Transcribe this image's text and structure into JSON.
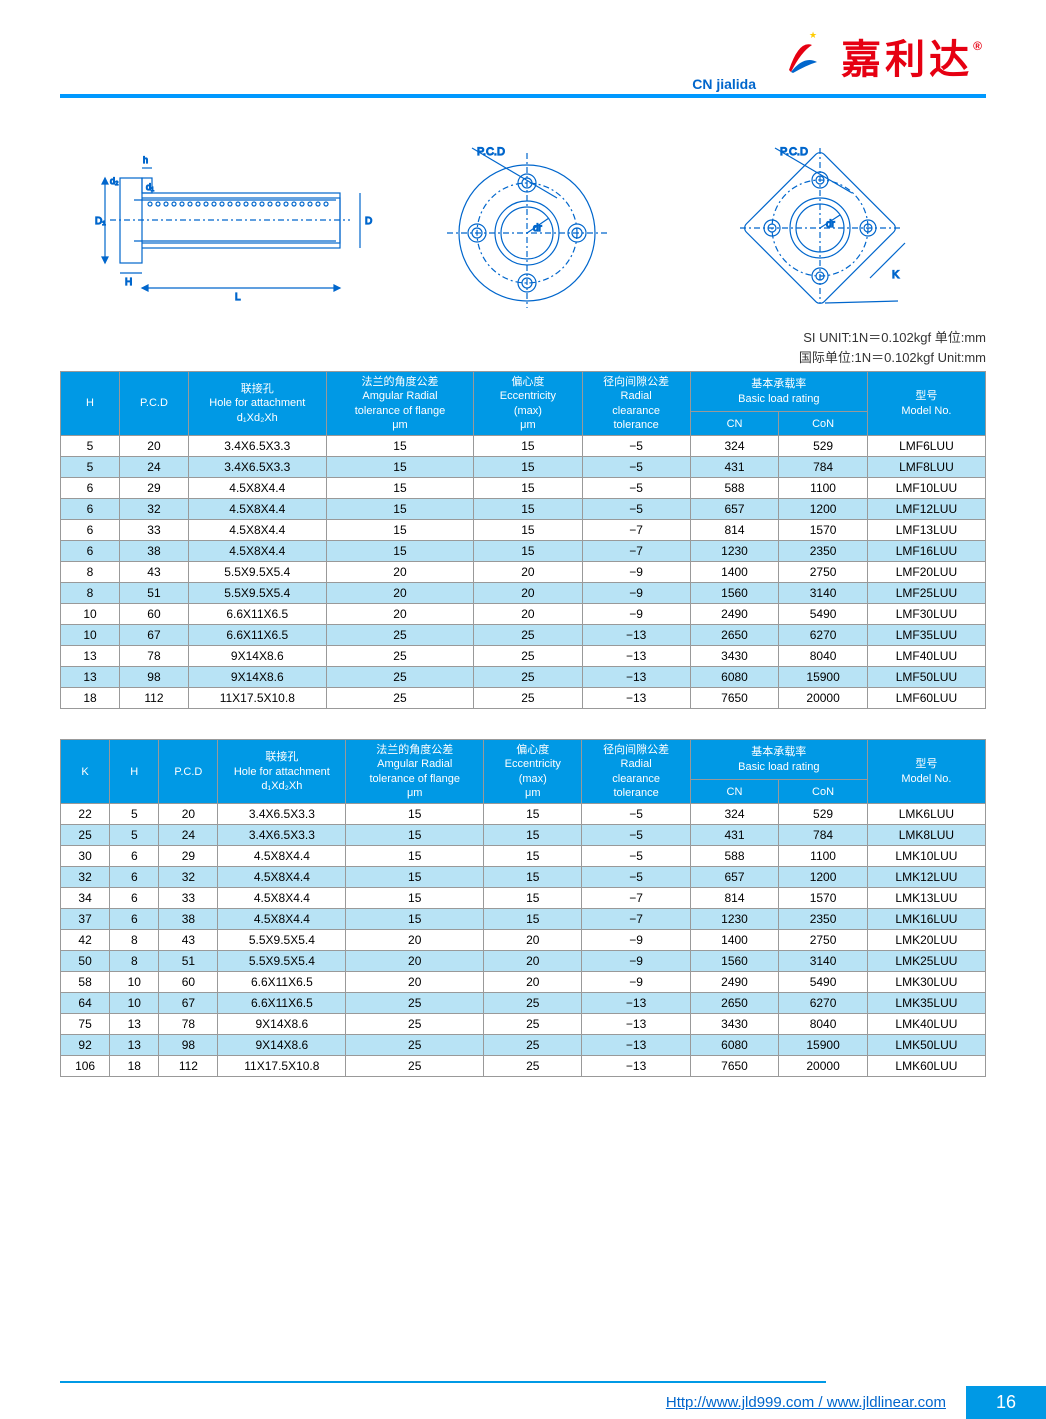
{
  "brand": {
    "sub": "CN jialida",
    "chars": "嘉利达",
    "reg": "®"
  },
  "unit": {
    "l1": "SI  UNIT:1N＝0.102kgf    单位:mm",
    "l2": "国际单位:1N＝0.102kgf    Unit:mm"
  },
  "t1": {
    "headers": {
      "h": "H",
      "pcd": "P.C.D",
      "hole_cn": "联接孔",
      "hole_en": "Hole for attachment",
      "hole_sub": "d₁Xd₂Xh",
      "ang_cn": "法兰的角度公差",
      "ang_en": "Amgular Radial",
      "ang_en2": "tolerance of flange",
      "ang_u": "μm",
      "ecc_cn": "偏心度",
      "ecc_en": "Eccentricity",
      "ecc_en2": "(max)",
      "ecc_u": "μm",
      "rad_cn": "径向间隙公差",
      "rad_en": "Radial",
      "rad_en2": "clearance",
      "rad_en3": "tolerance",
      "load_cn": "基本承载率",
      "load_en": "Basic load rating",
      "cn": "CN",
      "con": "CoN",
      "model_cn": "型号",
      "model_en": "Model No."
    },
    "rows": [
      [
        "5",
        "20",
        "3.4X6.5X3.3",
        "15",
        "15",
        "−5",
        "324",
        "529",
        "LMF6LUU"
      ],
      [
        "5",
        "24",
        "3.4X6.5X3.3",
        "15",
        "15",
        "−5",
        "431",
        "784",
        "LMF8LUU"
      ],
      [
        "6",
        "29",
        "4.5X8X4.4",
        "15",
        "15",
        "−5",
        "588",
        "1100",
        "LMF10LUU"
      ],
      [
        "6",
        "32",
        "4.5X8X4.4",
        "15",
        "15",
        "−5",
        "657",
        "1200",
        "LMF12LUU"
      ],
      [
        "6",
        "33",
        "4.5X8X4.4",
        "15",
        "15",
        "−7",
        "814",
        "1570",
        "LMF13LUU"
      ],
      [
        "6",
        "38",
        "4.5X8X4.4",
        "15",
        "15",
        "−7",
        "1230",
        "2350",
        "LMF16LUU"
      ],
      [
        "8",
        "43",
        "5.5X9.5X5.4",
        "20",
        "20",
        "−9",
        "1400",
        "2750",
        "LMF20LUU"
      ],
      [
        "8",
        "51",
        "5.5X9.5X5.4",
        "20",
        "20",
        "−9",
        "1560",
        "3140",
        "LMF25LUU"
      ],
      [
        "10",
        "60",
        "6.6X11X6.5",
        "20",
        "20",
        "−9",
        "2490",
        "5490",
        "LMF30LUU"
      ],
      [
        "10",
        "67",
        "6.6X11X6.5",
        "25",
        "25",
        "−13",
        "2650",
        "6270",
        "LMF35LUU"
      ],
      [
        "13",
        "78",
        "9X14X8.6",
        "25",
        "25",
        "−13",
        "3430",
        "8040",
        "LMF40LUU"
      ],
      [
        "13",
        "98",
        "9X14X8.6",
        "25",
        "25",
        "−13",
        "6080",
        "15900",
        "LMF50LUU"
      ],
      [
        "18",
        "112",
        "11X17.5X10.8",
        "25",
        "25",
        "−13",
        "7650",
        "20000",
        "LMF60LUU"
      ]
    ]
  },
  "t2": {
    "headers": {
      "k": "K"
    },
    "rows": [
      [
        "22",
        "5",
        "20",
        "3.4X6.5X3.3",
        "15",
        "15",
        "−5",
        "324",
        "529",
        "LMK6LUU"
      ],
      [
        "25",
        "5",
        "24",
        "3.4X6.5X3.3",
        "15",
        "15",
        "−5",
        "431",
        "784",
        "LMK8LUU"
      ],
      [
        "30",
        "6",
        "29",
        "4.5X8X4.4",
        "15",
        "15",
        "−5",
        "588",
        "1100",
        "LMK10LUU"
      ],
      [
        "32",
        "6",
        "32",
        "4.5X8X4.4",
        "15",
        "15",
        "−5",
        "657",
        "1200",
        "LMK12LUU"
      ],
      [
        "34",
        "6",
        "33",
        "4.5X8X4.4",
        "15",
        "15",
        "−7",
        "814",
        "1570",
        "LMK13LUU"
      ],
      [
        "37",
        "6",
        "38",
        "4.5X8X4.4",
        "15",
        "15",
        "−7",
        "1230",
        "2350",
        "LMK16LUU"
      ],
      [
        "42",
        "8",
        "43",
        "5.5X9.5X5.4",
        "20",
        "20",
        "−9",
        "1400",
        "2750",
        "LMK20LUU"
      ],
      [
        "50",
        "8",
        "51",
        "5.5X9.5X5.4",
        "20",
        "20",
        "−9",
        "1560",
        "3140",
        "LMK25LUU"
      ],
      [
        "58",
        "10",
        "60",
        "6.6X11X6.5",
        "20",
        "20",
        "−9",
        "2490",
        "5490",
        "LMK30LUU"
      ],
      [
        "64",
        "10",
        "67",
        "6.6X11X6.5",
        "25",
        "25",
        "−13",
        "2650",
        "6270",
        "LMK35LUU"
      ],
      [
        "75",
        "13",
        "78",
        "9X14X8.6",
        "25",
        "25",
        "−13",
        "3430",
        "8040",
        "LMK40LUU"
      ],
      [
        "92",
        "13",
        "98",
        "9X14X8.6",
        "25",
        "25",
        "−13",
        "6080",
        "15900",
        "LMK50LUU"
      ],
      [
        "106",
        "18",
        "112",
        "11X17.5X10.8",
        "25",
        "25",
        "−13",
        "7650",
        "20000",
        "LMK60LUU"
      ]
    ]
  },
  "dia_labels": {
    "d1": "D₁",
    "d": "D",
    "h": "h",
    "d2": "d₂",
    "d1s": "d₁",
    "H": "H",
    "L": "L",
    "pcd": "P.C.D",
    "dr": "dr",
    "K": "K"
  },
  "footer": {
    "url": "Http://www.jld999.com / www.jldlinear.com",
    "page": "16"
  },
  "colors": {
    "accent": "#0099e5",
    "row_alt": "#b8e3f5",
    "red": "#e60012",
    "link": "#0066cc"
  }
}
